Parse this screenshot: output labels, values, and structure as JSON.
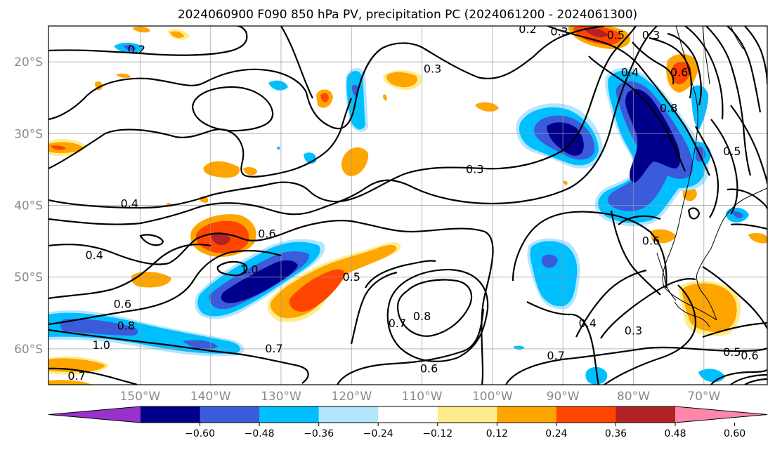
{
  "title": "2024060900 F090 850 hPa PV, precipitation PC (2024061200 - 2024061300)",
  "map": {
    "lon_range": [
      -163,
      -61
    ],
    "lat_range": [
      -65,
      -15
    ],
    "lat_ticks": [
      {
        "value": -20,
        "label": "20°S"
      },
      {
        "value": -30,
        "label": "30°S"
      },
      {
        "value": -40,
        "label": "40°S"
      },
      {
        "value": -50,
        "label": "50°S"
      },
      {
        "value": -60,
        "label": "60°S"
      }
    ],
    "lon_ticks": [
      {
        "value": -150,
        "label": "150°W"
      },
      {
        "value": -140,
        "label": "140°W"
      },
      {
        "value": -130,
        "label": "130°W"
      },
      {
        "value": -120,
        "label": "120°W"
      },
      {
        "value": -110,
        "label": "110°W"
      },
      {
        "value": -100,
        "label": "100°W"
      },
      {
        "value": -90,
        "label": "90°W"
      },
      {
        "value": -80,
        "label": "80°W"
      },
      {
        "value": -70,
        "label": "70°W"
      }
    ],
    "contour_labels": [
      {
        "text": "0.2",
        "lon": -150.5,
        "lat": -18.8
      },
      {
        "text": "0.2",
        "lon": -95,
        "lat": -16.0
      },
      {
        "text": "0.3",
        "lon": -90.5,
        "lat": -16.3
      },
      {
        "text": "0.5",
        "lon": -82.5,
        "lat": -16.8
      },
      {
        "text": "0.3",
        "lon": -77.5,
        "lat": -16.8
      },
      {
        "text": "0.3",
        "lon": -108.5,
        "lat": -21.5
      },
      {
        "text": "0.4",
        "lon": -80.5,
        "lat": -22.0
      },
      {
        "text": "0.6",
        "lon": -73.5,
        "lat": -22.0
      },
      {
        "text": "0.8",
        "lon": -75.0,
        "lat": -27.0
      },
      {
        "text": "0.3",
        "lon": -102.5,
        "lat": -35.5
      },
      {
        "text": "0.5",
        "lon": -66.0,
        "lat": -33.0
      },
      {
        "text": "0.4",
        "lon": -151.5,
        "lat": -40.3
      },
      {
        "text": "0.6",
        "lon": -132.0,
        "lat": -44.5
      },
      {
        "text": "0.4",
        "lon": -156.5,
        "lat": -47.5
      },
      {
        "text": "0.6",
        "lon": -77.5,
        "lat": -45.5
      },
      {
        "text": "1.0",
        "lon": -134.5,
        "lat": -49.5
      },
      {
        "text": "0.5",
        "lon": -120.0,
        "lat": -50.5
      },
      {
        "text": "0.6",
        "lon": -152.5,
        "lat": -54.3
      },
      {
        "text": "0.8",
        "lon": -152.0,
        "lat": -57.3
      },
      {
        "text": "0.7",
        "lon": -113.5,
        "lat": -57.0
      },
      {
        "text": "0.8",
        "lon": -110.0,
        "lat": -56.0
      },
      {
        "text": "0.4",
        "lon": -86.5,
        "lat": -57.0
      },
      {
        "text": "0.3",
        "lon": -80.0,
        "lat": -58.0
      },
      {
        "text": "1.0",
        "lon": -155.5,
        "lat": -60.0
      },
      {
        "text": "0.7",
        "lon": -131.0,
        "lat": -60.5
      },
      {
        "text": "0.6",
        "lon": -109.0,
        "lat": -63.3
      },
      {
        "text": "0.7",
        "lon": -91.0,
        "lat": -61.5
      },
      {
        "text": "0.5",
        "lon": -66.0,
        "lat": -61.0
      },
      {
        "text": "0.6",
        "lon": -63.5,
        "lat": -61.5
      },
      {
        "text": "0.7",
        "lon": -159.0,
        "lat": -64.3
      }
    ]
  },
  "colorbar": {
    "colors": [
      "#9932cc",
      "#00008b",
      "#3b5bdb",
      "#00bfff",
      "#b3e5ff",
      "#ffffff",
      "#ffec8b",
      "#ffa500",
      "#ff4500",
      "#b22222",
      "#ff88aa"
    ],
    "tick_labels": [
      "−0.60",
      "−0.48",
      "−0.36",
      "−0.24",
      "−0.12",
      "0.12",
      "0.24",
      "0.36",
      "0.48",
      "0.60"
    ]
  }
}
